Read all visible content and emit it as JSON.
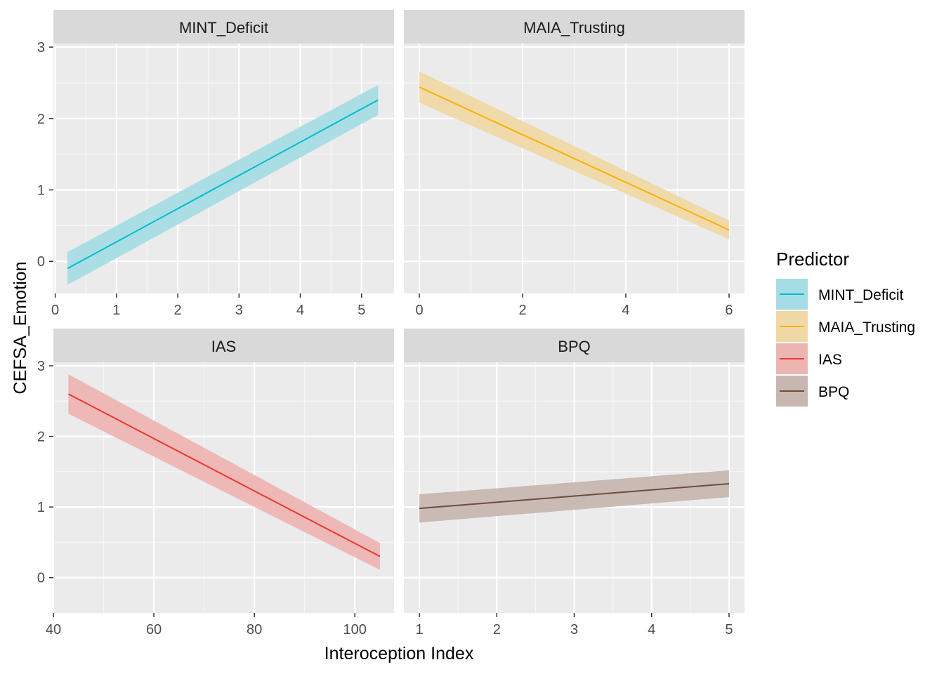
{
  "chart_data": {
    "type": "line",
    "xlabel": "Interoception Index",
    "ylabel": "CEFSA_Emotion",
    "legend": {
      "title": "Predictor",
      "position": "right",
      "entries": [
        "MINT_Deficit",
        "MAIA_Trusting",
        "IAS",
        "BPQ"
      ]
    },
    "panels": [
      {
        "name": "MINT_Deficit",
        "color": "#00BCD4",
        "fill": "#A6DCE4",
        "xlim": [
          -0.03,
          5.53
        ],
        "ylim": [
          -0.45,
          3.05
        ],
        "xticks": [
          0,
          1,
          2,
          3,
          4,
          5
        ],
        "yticks": [
          0,
          1,
          2,
          3
        ],
        "x": [
          0.2,
          5.27
        ],
        "y": [
          -0.1,
          2.26
        ],
        "lower": [
          -0.33,
          2.05
        ],
        "upper": [
          0.13,
          2.47
        ]
      },
      {
        "name": "MAIA_Trusting",
        "color": "#FFB000",
        "fill": "#F0D9A6",
        "xlim": [
          -0.3,
          6.3
        ],
        "ylim": [
          -0.45,
          3.05
        ],
        "xticks": [
          0,
          2,
          4,
          6
        ],
        "yticks": [
          0,
          1,
          2,
          3
        ],
        "x": [
          0,
          6
        ],
        "y": [
          2.44,
          0.44
        ],
        "lower": [
          2.22,
          0.31
        ],
        "upper": [
          2.66,
          0.57
        ]
      },
      {
        "name": "IAS",
        "color": "#E8392F",
        "fill": "#EDB5B2",
        "xlim": [
          40,
          107.8
        ],
        "ylim": [
          -0.5,
          3.05
        ],
        "xticks": [
          40,
          60,
          80,
          100
        ],
        "yticks": [
          0,
          1,
          2,
          3
        ],
        "x": [
          43,
          105
        ],
        "y": [
          2.6,
          0.3
        ],
        "lower": [
          2.32,
          0.11
        ],
        "upper": [
          2.88,
          0.49
        ]
      },
      {
        "name": "BPQ",
        "color": "#6B4E3D",
        "fill": "#C8B7B1",
        "xlim": [
          0.8,
          5.2
        ],
        "ylim": [
          -0.5,
          3.05
        ],
        "xticks": [
          1,
          2,
          3,
          4,
          5
        ],
        "yticks": [
          0,
          1,
          2,
          3
        ],
        "x": [
          1,
          5
        ],
        "y": [
          0.98,
          1.33
        ],
        "lower": [
          0.78,
          1.14
        ],
        "upper": [
          1.18,
          1.52
        ]
      }
    ]
  }
}
